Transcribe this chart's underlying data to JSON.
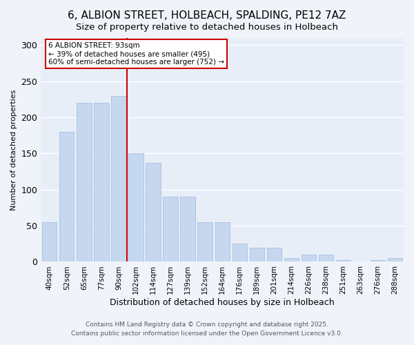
{
  "title_line1": "6, ALBION STREET, HOLBEACH, SPALDING, PE12 7AZ",
  "title_line2": "Size of property relative to detached houses in Holbeach",
  "xlabel": "Distribution of detached houses by size in Holbeach",
  "ylabel": "Number of detached properties",
  "bar_color": "#c5d8f0",
  "bar_edge_color": "#a0b8d8",
  "categories": [
    "40sqm",
    "52sqm",
    "65sqm",
    "77sqm",
    "90sqm",
    "102sqm",
    "114sqm",
    "127sqm",
    "139sqm",
    "152sqm",
    "164sqm",
    "176sqm",
    "189sqm",
    "201sqm",
    "214sqm",
    "226sqm",
    "238sqm",
    "251sqm",
    "263sqm",
    "276sqm",
    "288sqm"
  ],
  "values": [
    55,
    180,
    220,
    220,
    230,
    150,
    137,
    90,
    90,
    55,
    55,
    25,
    20,
    20,
    5,
    10,
    10,
    2,
    0,
    2,
    5
  ],
  "property_line_x": 4.5,
  "annotation_title": "6 ALBION STREET: 93sqm",
  "annotation_line1": "← 39% of detached houses are smaller (495)",
  "annotation_line2": "60% of semi-detached houses are larger (752) →",
  "vline_color": "#cc0000",
  "annotation_box_color": "#ffffff",
  "annotation_box_edge": "#cc0000",
  "footer_line1": "Contains HM Land Registry data © Crown copyright and database right 2025.",
  "footer_line2": "Contains public sector information licensed under the Open Government Licence v3.0.",
  "background_color": "#f0f4fa",
  "plot_bg_color": "#e8eef8",
  "grid_color": "#ffffff",
  "ylim": [
    0,
    310
  ],
  "yticks": [
    0,
    50,
    100,
    150,
    200,
    250,
    300
  ]
}
